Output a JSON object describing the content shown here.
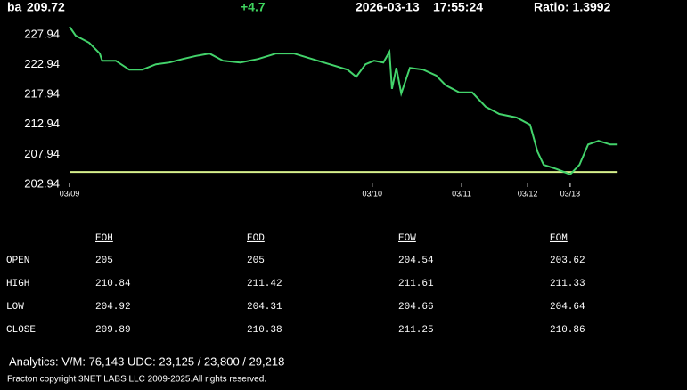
{
  "header": {
    "symbol": "ba",
    "price": "209.72",
    "change": "+4.7",
    "date": "2026-03-13",
    "time": "17:55:24",
    "ratio": "Ratio: 1.3992"
  },
  "chart_data": {
    "type": "line",
    "x": [
      0,
      1.0,
      3.2,
      4.9,
      5.3,
      7.5,
      9.7,
      11.8,
      14.0,
      16.2,
      18.4,
      20.5,
      22.7,
      24.9,
      27.7,
      30.6,
      33.5,
      36.4,
      39.3,
      42.2,
      45.1,
      46.5,
      48.0,
      49.4,
      50.9,
      51.9,
      52.3,
      53.0,
      53.8,
      55.2,
      57.4,
      59.5,
      61.0,
      63.2,
      65.3,
      67.5,
      69.7,
      72.5,
      74.7,
      75.9,
      76.9,
      79.0,
      81.2,
      82.7,
      84.1,
      85.8,
      87.7,
      88.9
    ],
    "values": [
      229.28,
      227.8,
      226.6,
      224.8,
      223.6,
      223.6,
      222.1,
      222.1,
      223.0,
      223.3,
      223.9,
      224.4,
      224.8,
      223.6,
      223.3,
      223.9,
      224.8,
      224.8,
      223.9,
      223.0,
      222.1,
      220.9,
      223.0,
      223.6,
      223.3,
      225.1,
      218.9,
      222.4,
      218.1,
      222.4,
      222.1,
      221.1,
      219.5,
      218.3,
      218.3,
      215.9,
      214.7,
      214.1,
      212.9,
      208.4,
      206.2,
      205.5,
      204.6,
      206.2,
      209.6,
      210.2,
      209.6,
      209.6
    ],
    "color": "#43d36b",
    "ref_line": {
      "value": 205,
      "color": "#d6ef8c"
    },
    "xlim": [
      0,
      100
    ],
    "xticks": [
      {
        "value": 0,
        "label": "03/09"
      },
      {
        "value": 49.1,
        "label": "03/10"
      },
      {
        "value": 63.6,
        "label": "03/11"
      },
      {
        "value": 74.3,
        "label": "03/12"
      },
      {
        "value": 81.2,
        "label": "03/13"
      }
    ],
    "ylim": [
      202.94,
      229.58
    ],
    "yticks": [
      202.94,
      207.94,
      212.94,
      217.94,
      222.94,
      227.94
    ],
    "grid": false
  },
  "table": {
    "columns": [
      "EOH",
      "EOD",
      "EOW",
      "EOM"
    ],
    "rows": [
      [
        "OPEN",
        "205",
        "205",
        "204.54",
        "203.62"
      ],
      [
        "HIGH",
        "210.84",
        "211.42",
        "211.61",
        "211.33"
      ],
      [
        "LOW",
        "204.92",
        "204.31",
        "204.66",
        "204.64"
      ],
      [
        "CLOSE",
        "209.89",
        "210.38",
        "211.25",
        "210.86"
      ]
    ]
  },
  "footer": {
    "analytics": "Analytics:  V/M: 76,143   UDC:  23,125  / 23,800   / 29,218",
    "copyright": "Fracton copyright 3NET LABS LLC 2009-2025.All rights reserved."
  }
}
